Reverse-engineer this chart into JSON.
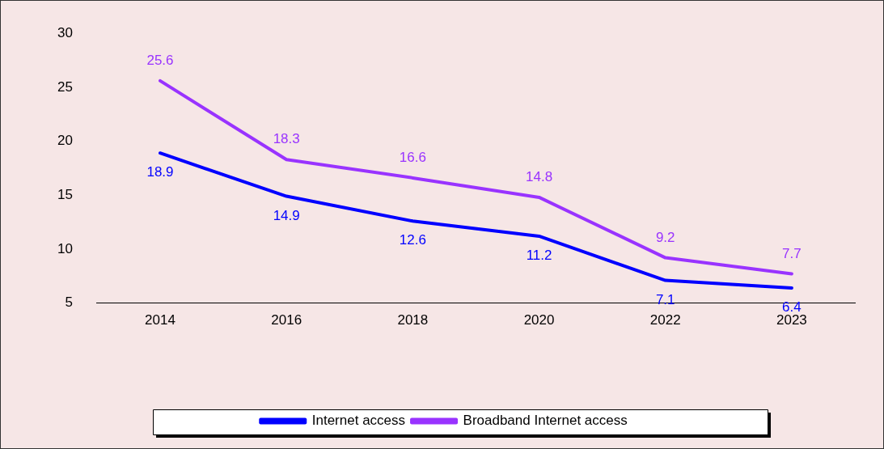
{
  "chart_data": {
    "type": "line",
    "categories": [
      "2014",
      "2016",
      "2018",
      "2020",
      "2022",
      "2023"
    ],
    "series": [
      {
        "name": "Internet access",
        "color": "#0000ff",
        "values": [
          18.9,
          14.9,
          12.6,
          11.2,
          7.1,
          6.4
        ]
      },
      {
        "name": "Broadband Internet access",
        "color": "#9933ff",
        "values": [
          25.6,
          18.3,
          16.6,
          14.8,
          9.2,
          7.7
        ]
      }
    ],
    "ylim": [
      5,
      30
    ],
    "yticks": [
      5,
      10,
      15,
      20,
      25,
      30
    ],
    "grid": false,
    "legend": "bottom",
    "marker": "none",
    "line_style": "solid",
    "data_labels": true
  }
}
